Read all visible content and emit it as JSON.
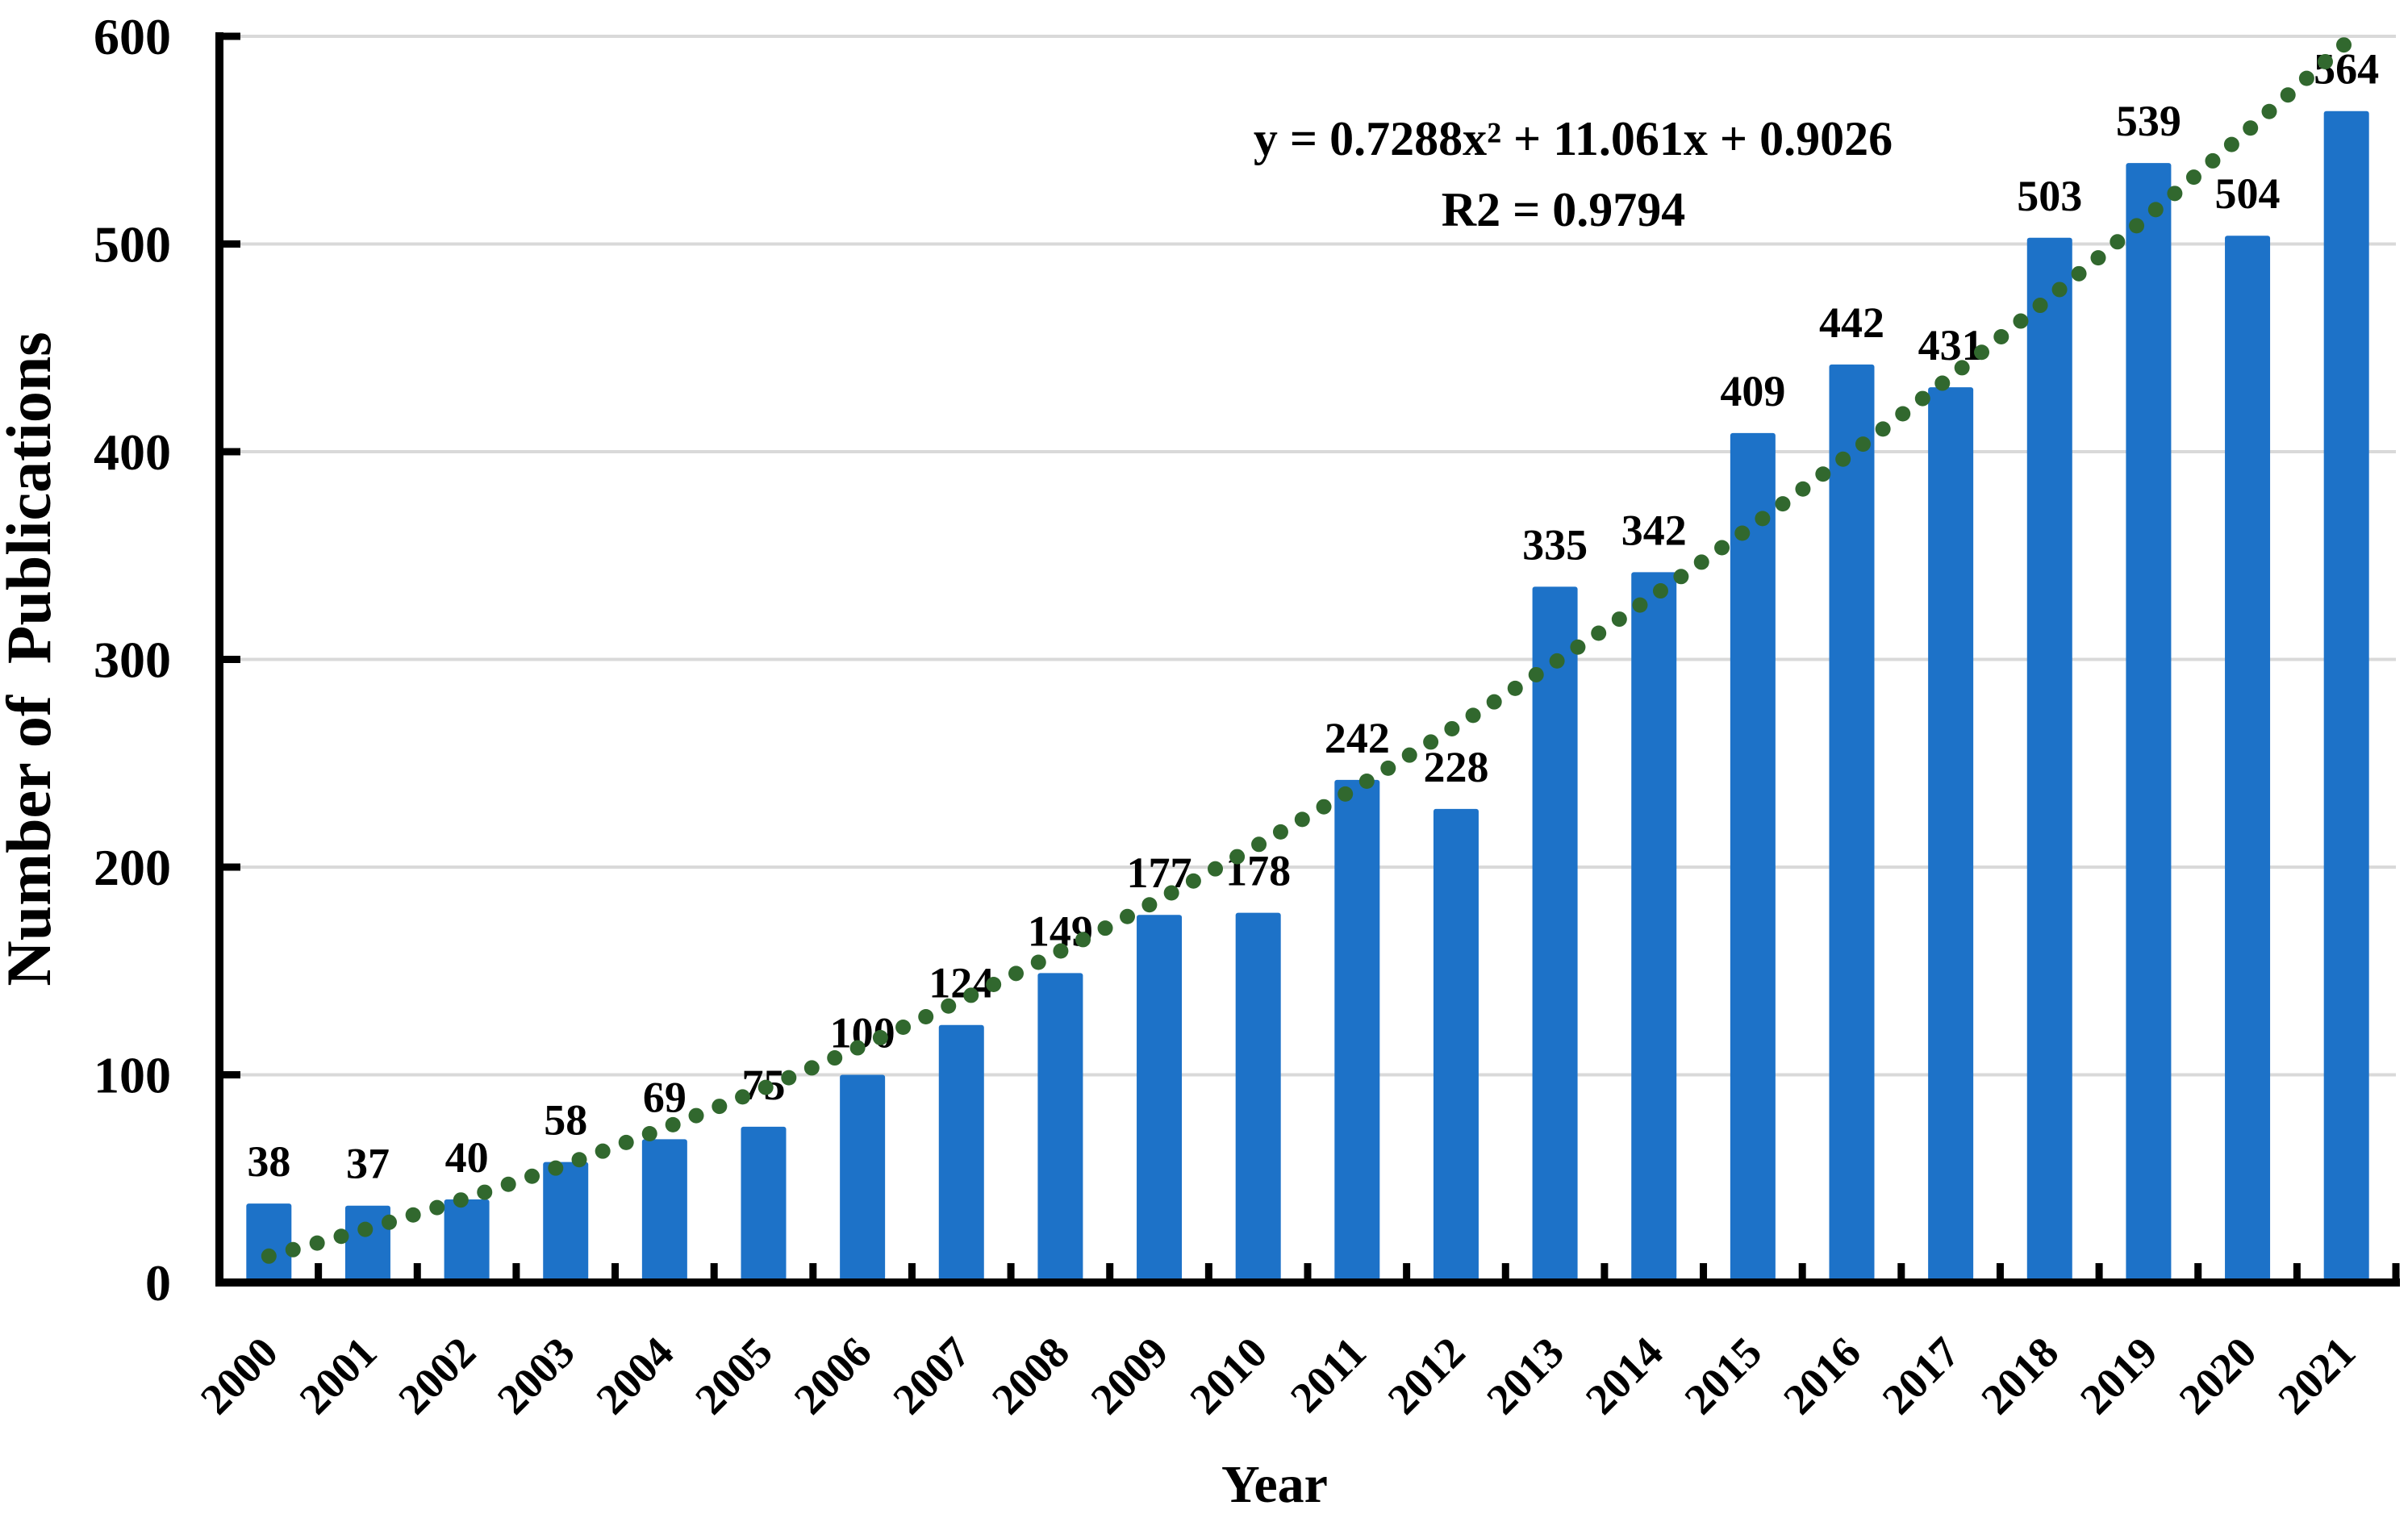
{
  "figure": {
    "equation_line1": "y = 0.7288x² + 11.061x + 0.9026",
    "equation_line2": "R2 = 0.9794",
    "xlabel": "Year",
    "ylabel": "Number of  Publications"
  },
  "chart_data": {
    "type": "bar",
    "title": "",
    "categories": [
      "2000",
      "2001",
      "2002",
      "2003",
      "2004",
      "2005",
      "2006",
      "2007",
      "2008",
      "2009",
      "2010",
      "2011",
      "2012",
      "2013",
      "2014",
      "2015",
      "2016",
      "2017",
      "2018",
      "2019",
      "2020",
      "2021"
    ],
    "values": [
      38,
      37,
      40,
      58,
      69,
      75,
      100,
      124,
      149,
      177,
      178,
      242,
      228,
      335,
      342,
      409,
      442,
      431,
      503,
      539,
      504,
      564
    ],
    "xlabel": "Year",
    "ylabel": "Number of  Publications",
    "ylim": [
      0,
      600
    ],
    "yticks": [
      0,
      100,
      200,
      300,
      400,
      500,
      600
    ],
    "grid": true,
    "legend": false,
    "data_labels": true,
    "bar_color": "#1d72c8",
    "gridline_color": "#d9d9d9",
    "axis_color": "#000000",
    "label_color": "#000000",
    "trendline": {
      "type": "polynomial",
      "degree": 2,
      "coefficients": {
        "a2": 0.7288,
        "a1": 11.061,
        "a0": 0.9026
      },
      "equation": "y = 0.7288x² + 11.061x + 0.9026",
      "r_squared": 0.9794,
      "style": "dotted",
      "color": "#31682e"
    }
  }
}
